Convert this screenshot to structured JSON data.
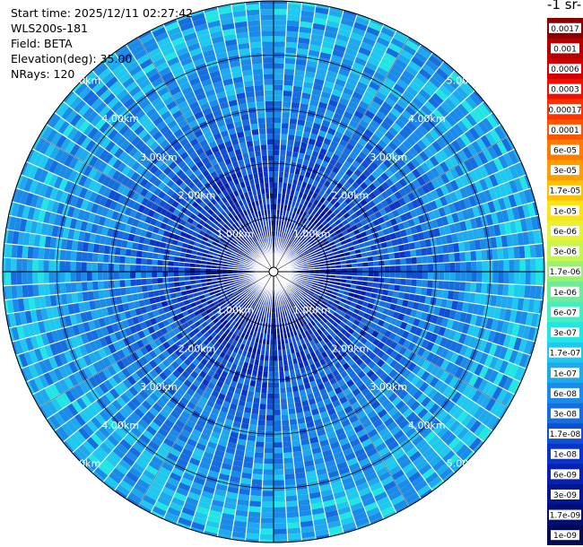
{
  "header": {
    "start_time": "Start time: 2025/12/11 02:27:42",
    "device": "WLS200s-181",
    "field": "Field: BETA",
    "elevation": "Elevation(deg): 35.00",
    "nrays": "NRays: 120"
  },
  "colorbar": {
    "unit_label": "-1 sr-",
    "ticks": [
      "0.0017",
      "0.001",
      "0.0006",
      "0.0003",
      "0.00017",
      "0.0001",
      "6e-05",
      "3e-05",
      "1.7e-05",
      "1e-05",
      "6e-06",
      "3e-06",
      "1.7e-06",
      "1e-06",
      "6e-07",
      "3e-07",
      "1.7e-07",
      "1e-07",
      "6e-08",
      "3e-08",
      "1.7e-08",
      "1e-08",
      "6e-09",
      "3e-09",
      "1.7e-09",
      "1e-09"
    ],
    "colors": [
      "#8b0000",
      "#b50000",
      "#d40000",
      "#ee1100",
      "#ff3300",
      "#ff5500",
      "#ff7a00",
      "#ff9d00",
      "#ffc000",
      "#fae21b",
      "#e7f233",
      "#c4f550",
      "#9af070",
      "#70ec99",
      "#44eec4",
      "#22e6e3",
      "#1fc8ef",
      "#1ea9ee",
      "#1a8be8",
      "#156de0",
      "#104ed6",
      "#0a34c8",
      "#0620b0",
      "#031590",
      "#020e70",
      "#020a55"
    ]
  },
  "chart_data": {
    "type": "heatmap",
    "subtype": "polar-ppi",
    "field": "BETA",
    "elevation_deg": 35.0,
    "nrays": 120,
    "range_rings_km": [
      1,
      2,
      3,
      4,
      5
    ],
    "ring_labels": [
      "1.00km",
      "2.00km",
      "3.00km",
      "4.00km",
      "5.00km"
    ],
    "max_range_km": 5.0,
    "color_scale": "log",
    "value_range": [
      1e-09,
      0.0017
    ],
    "dominant_values_by_range": [
      {
        "range_km": 0.5,
        "value": 6e-09
      },
      {
        "range_km": 1.5,
        "value": 1e-08
      },
      {
        "range_km": 2.5,
        "value": 3e-08
      },
      {
        "range_km": 3.5,
        "value": 6e-08
      },
      {
        "range_km": 4.5,
        "value": 1e-07
      }
    ]
  }
}
